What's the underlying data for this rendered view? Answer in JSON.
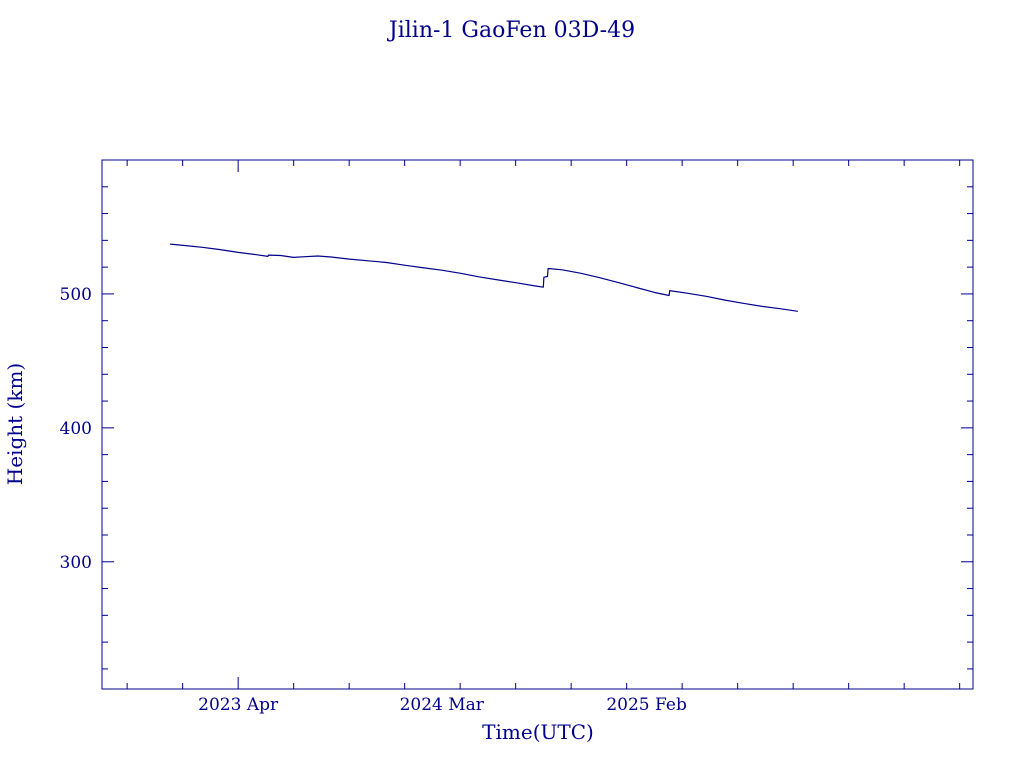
{
  "colors": {
    "ink": "#00008b",
    "background": "#ffffff"
  },
  "chart_data": {
    "type": "line",
    "title": "Jilin-1 GaoFen 03D-49",
    "xlabel": "Time(UTC)",
    "ylabel": "Height (km)",
    "x_axis": {
      "type": "date",
      "range": [
        "2022-08-20",
        "2026-07-23"
      ],
      "tick_labels": [
        {
          "date": "2023-04-01",
          "label": "2023 Apr"
        },
        {
          "date": "2024-03-01",
          "label": "2024 Mar"
        },
        {
          "date": "2025-02-01",
          "label": "2025 Feb"
        }
      ]
    },
    "y_axis": {
      "range": [
        205,
        600
      ],
      "tick_labels": [
        300,
        400,
        500
      ]
    },
    "grid": false,
    "legend": "none",
    "series": [
      {
        "points": [
          [
            "2022-12-10",
            537.2
          ],
          [
            "2023-01-01",
            536.2
          ],
          [
            "2023-02-01",
            534.8
          ],
          [
            "2023-03-01",
            533.2
          ],
          [
            "2023-04-01",
            531.0
          ],
          [
            "2023-05-01",
            529.3
          ],
          [
            "2023-05-20",
            528.0
          ],
          [
            "2023-05-21",
            529.0
          ],
          [
            "2023-06-10",
            528.7
          ],
          [
            "2023-07-01",
            527.3
          ],
          [
            "2023-07-20",
            527.8
          ],
          [
            "2023-08-10",
            528.3
          ],
          [
            "2023-09-01",
            527.6
          ],
          [
            "2023-10-01",
            526.0
          ],
          [
            "2023-11-01",
            524.7
          ],
          [
            "2023-12-01",
            523.5
          ],
          [
            "2024-01-01",
            521.4
          ],
          [
            "2024-02-01",
            519.4
          ],
          [
            "2024-03-01",
            517.7
          ],
          [
            "2024-04-01",
            515.4
          ],
          [
            "2024-05-01",
            512.8
          ],
          [
            "2024-06-01",
            510.5
          ],
          [
            "2024-07-01",
            508.4
          ],
          [
            "2024-08-01",
            506.0
          ],
          [
            "2024-08-15",
            505.0
          ],
          [
            "2024-08-16",
            512.5
          ],
          [
            "2024-08-22",
            513.0
          ],
          [
            "2024-08-23",
            519.0
          ],
          [
            "2024-09-15",
            518.0
          ],
          [
            "2024-10-15",
            515.5
          ],
          [
            "2024-11-15",
            512.2
          ],
          [
            "2024-12-15",
            508.7
          ],
          [
            "2025-01-15",
            504.8
          ],
          [
            "2025-02-15",
            501.0
          ],
          [
            "2025-03-10",
            498.8
          ],
          [
            "2025-03-11",
            502.5
          ],
          [
            "2025-04-10",
            500.5
          ],
          [
            "2025-05-10",
            498.2
          ],
          [
            "2025-06-10",
            495.4
          ],
          [
            "2025-07-10",
            493.0
          ],
          [
            "2025-08-10",
            490.7
          ],
          [
            "2025-09-10",
            488.9
          ],
          [
            "2025-10-08",
            487.0
          ]
        ]
      }
    ]
  }
}
